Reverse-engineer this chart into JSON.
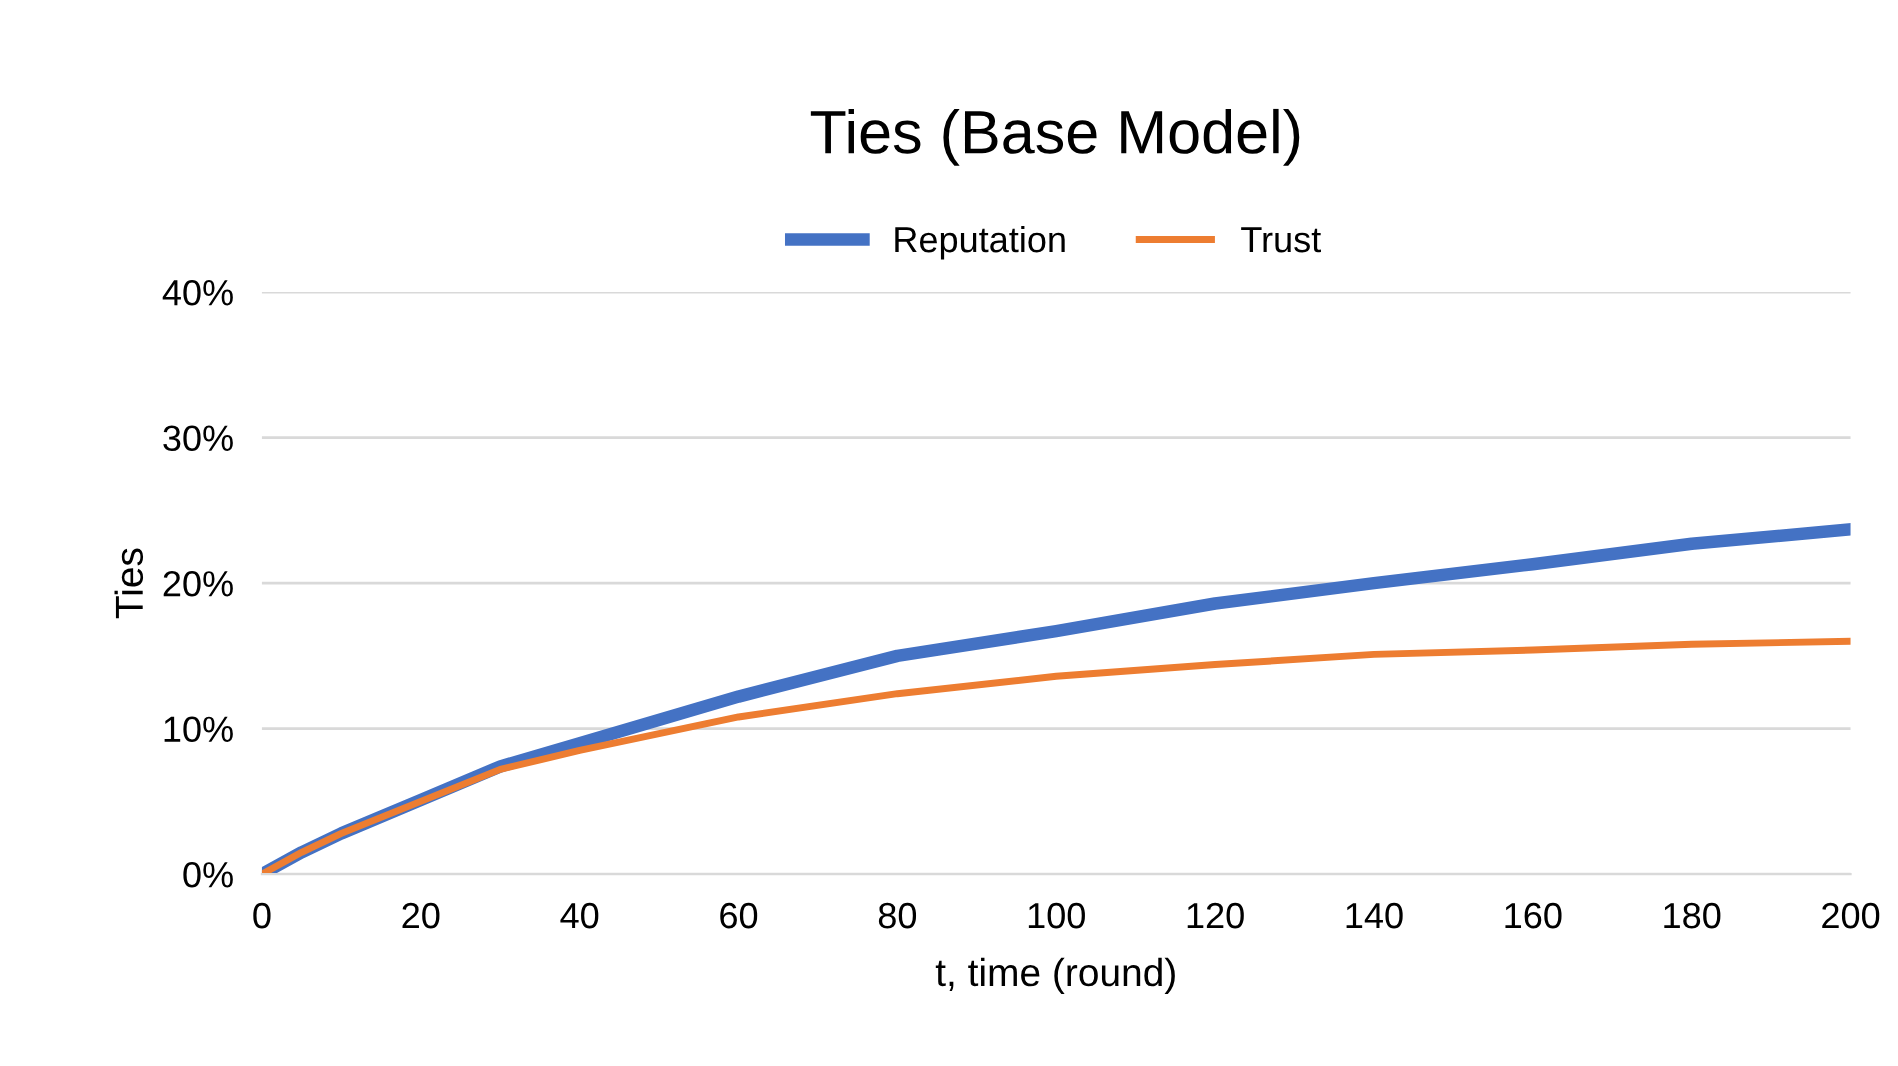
{
  "chart_data": {
    "type": "line",
    "title": "Ties (Base Model)",
    "xlabel": "t, time (round)",
    "ylabel": "Ties",
    "x": [
      0,
      5,
      10,
      20,
      30,
      40,
      60,
      80,
      100,
      120,
      140,
      160,
      180,
      200
    ],
    "series": [
      {
        "name": "Reputation",
        "color": "#4472c4",
        "values": [
          0,
          1.5,
          2.8,
          5.1,
          7.4,
          9.0,
          12.2,
          15.0,
          16.7,
          18.6,
          20.0,
          21.3,
          22.7,
          23.7
        ]
      },
      {
        "name": "Trust",
        "color": "#ed7d31",
        "values": [
          0,
          1.5,
          2.8,
          5.0,
          7.2,
          8.5,
          10.8,
          12.4,
          13.6,
          14.4,
          15.1,
          15.4,
          15.8,
          16.0
        ]
      }
    ],
    "xlim": [
      0,
      200
    ],
    "xticks": [
      0,
      20,
      40,
      60,
      80,
      100,
      120,
      140,
      160,
      180,
      200
    ],
    "ylim": [
      0,
      40
    ],
    "yticks": [
      {
        "value": 0,
        "label": "0%"
      },
      {
        "value": 10,
        "label": "10%"
      },
      {
        "value": 20,
        "label": "20%"
      },
      {
        "value": 30,
        "label": "30%"
      },
      {
        "value": 40,
        "label": "40%"
      }
    ],
    "grid": "y",
    "legend": "top",
    "marker": "none",
    "line_style": "solid"
  }
}
